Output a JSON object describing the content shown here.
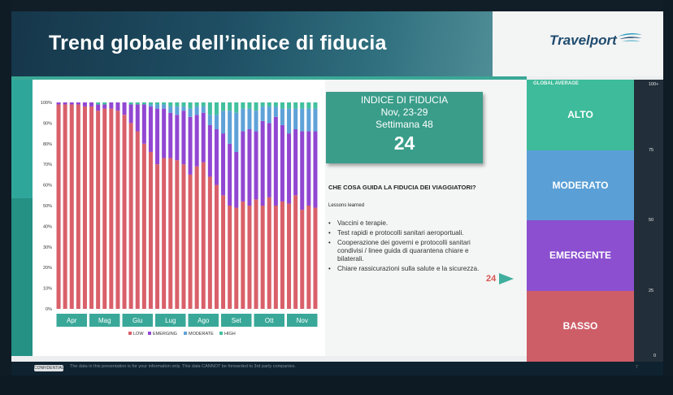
{
  "slide": {
    "title": "Trend globale dell’indice di fiducia",
    "logo": "Travelport",
    "footer_badge": "CONFIDENTIAL",
    "footer_text": "The data in this presentation is for your information only. This data CANNOT be forwarded to 3rd party companies.",
    "footer_page": "7"
  },
  "index_box": {
    "heading": "INDICE DI FIDUCIA",
    "dates": "Nov, 23-29",
    "week": "Settimana 48",
    "value": "24"
  },
  "drivers": {
    "title": "CHE COSA GUIDA LA FIDUCIA DEI VIAGGIATORI?",
    "subtitle": "Lessons learned",
    "items": [
      "Vaccini e terapie.",
      "Test rapidi e protocolli sanitari aeroportuali.",
      "Cooperazione dei governi e protocolli sanitari condivisi / linee guida di quarantena chiare e bilaterali.",
      "Chiare rassicurazioni sulla salute e la sicurezza."
    ]
  },
  "gauge": {
    "heading": "GLOBAL AVERAGE",
    "segments": [
      {
        "label": "ALTO",
        "color": "#3dbb9a"
      },
      {
        "label": "MODERATO",
        "color": "#5a9fd6"
      },
      {
        "label": "EMERGENTE",
        "color": "#8b4fd0"
      },
      {
        "label": "BASSO",
        "color": "#cd5e68"
      }
    ],
    "ticks": [
      "100+",
      "75",
      "50",
      "25",
      "0"
    ],
    "marker_value": "24"
  },
  "chart_data": {
    "type": "bar",
    "stacked": true,
    "title": "",
    "xlabel": "",
    "ylabel": "",
    "ylim": [
      0,
      100
    ],
    "y_ticks": [
      "0%",
      "10%",
      "20%",
      "30%",
      "40%",
      "50%",
      "60%",
      "70%",
      "80%",
      "90%",
      "100%"
    ],
    "months": [
      "Apr",
      "Mag",
      "Giu",
      "Lug",
      "Ago",
      "Set",
      "Ott",
      "Nov"
    ],
    "colors": {
      "LOW": "#d9606a",
      "EMERGING": "#9147d2",
      "MODERATE": "#5ea2d8",
      "HIGH": "#42c09f"
    },
    "legend": [
      "LOW",
      "EMERGING",
      "MODERATE",
      "HIGH"
    ],
    "series": [
      {
        "name": "LOW",
        "values": [
          99,
          99,
          99,
          99,
          98,
          98,
          96,
          97,
          97,
          96,
          94,
          90,
          86,
          80,
          76,
          70,
          73,
          73,
          72,
          70,
          65,
          69,
          71,
          64,
          60,
          55,
          50,
          49,
          52,
          50,
          53,
          50,
          54,
          50,
          52,
          51,
          55,
          48,
          50,
          49
        ]
      },
      {
        "name": "EMERGING",
        "values": [
          1,
          1,
          1,
          1,
          2,
          2,
          3,
          2,
          3,
          4,
          6,
          9,
          13,
          19,
          22,
          27,
          24,
          22,
          22,
          26,
          28,
          25,
          24,
          25,
          27,
          30,
          30,
          27,
          34,
          37,
          33,
          41,
          36,
          43,
          37,
          34,
          32,
          38,
          36,
          37
        ]
      },
      {
        "name": "MODERATE",
        "values": [
          0,
          0,
          0,
          0,
          0,
          0,
          0,
          0,
          0,
          0,
          0,
          0,
          0,
          0,
          1,
          2,
          2,
          3,
          4,
          2,
          4,
          4,
          3,
          5,
          7,
          11,
          16,
          19,
          11,
          10,
          10,
          7,
          8,
          5,
          8,
          12,
          10,
          11,
          11,
          11
        ]
      },
      {
        "name": "HIGH",
        "values": [
          0,
          0,
          0,
          0,
          0,
          0,
          1,
          1,
          0,
          0,
          0,
          1,
          1,
          1,
          1,
          1,
          1,
          2,
          2,
          2,
          3,
          2,
          2,
          6,
          6,
          4,
          4,
          5,
          3,
          3,
          4,
          2,
          2,
          2,
          3,
          3,
          3,
          3,
          3,
          3
        ]
      }
    ]
  }
}
